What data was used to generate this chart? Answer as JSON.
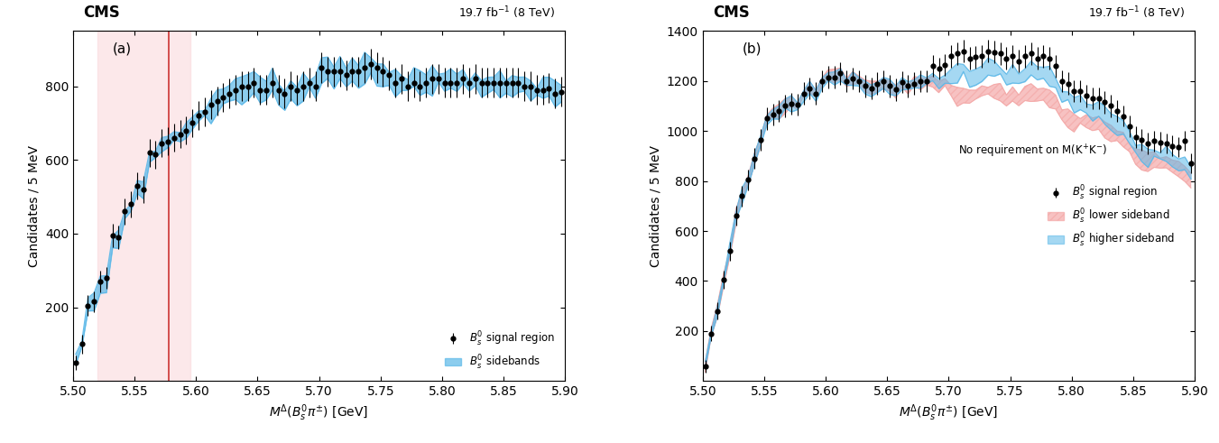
{
  "panel_a": {
    "label": "(a)",
    "xlim": [
      5.5,
      5.9
    ],
    "ylim": [
      0,
      950
    ],
    "yticks": [
      200,
      400,
      600,
      800
    ],
    "ylabel": "Candidates / 5 MeV",
    "xlabel": "$M^{\\Delta}(B^{0}_{s}\\pi^{\\pm})$ [GeV]",
    "red_line_x": 5.578,
    "pink_region": [
      5.52,
      5.595
    ],
    "signal_x": [
      5.502,
      5.507,
      5.512,
      5.517,
      5.522,
      5.527,
      5.532,
      5.537,
      5.542,
      5.547,
      5.552,
      5.557,
      5.562,
      5.567,
      5.572,
      5.577,
      5.582,
      5.587,
      5.592,
      5.597,
      5.602,
      5.607,
      5.612,
      5.617,
      5.622,
      5.627,
      5.632,
      5.637,
      5.642,
      5.647,
      5.652,
      5.657,
      5.662,
      5.667,
      5.672,
      5.677,
      5.682,
      5.687,
      5.692,
      5.697,
      5.702,
      5.707,
      5.712,
      5.717,
      5.722,
      5.727,
      5.732,
      5.737,
      5.742,
      5.747,
      5.752,
      5.757,
      5.762,
      5.767,
      5.772,
      5.777,
      5.782,
      5.787,
      5.792,
      5.797,
      5.802,
      5.807,
      5.812,
      5.817,
      5.822,
      5.827,
      5.832,
      5.837,
      5.842,
      5.847,
      5.852,
      5.857,
      5.862,
      5.867,
      5.872,
      5.877,
      5.882,
      5.887,
      5.892,
      5.897
    ],
    "signal_y": [
      50,
      100,
      205,
      215,
      270,
      280,
      395,
      390,
      460,
      480,
      530,
      520,
      620,
      615,
      645,
      650,
      660,
      670,
      680,
      700,
      720,
      730,
      750,
      760,
      770,
      780,
      790,
      800,
      800,
      810,
      790,
      790,
      810,
      790,
      780,
      800,
      790,
      800,
      810,
      800,
      850,
      840,
      840,
      840,
      830,
      840,
      840,
      850,
      860,
      850,
      840,
      830,
      810,
      820,
      800,
      810,
      800,
      810,
      820,
      820,
      810,
      810,
      810,
      820,
      810,
      820,
      810,
      810,
      810,
      810,
      810,
      810,
      810,
      800,
      800,
      790,
      790,
      795,
      780,
      785
    ],
    "signal_yerr": [
      20,
      25,
      28,
      28,
      30,
      30,
      33,
      33,
      35,
      35,
      37,
      37,
      38,
      38,
      38,
      38,
      38,
      38,
      38,
      39,
      39,
      39,
      40,
      40,
      40,
      40,
      40,
      41,
      41,
      41,
      41,
      41,
      41,
      41,
      40,
      40,
      40,
      40,
      40,
      40,
      41,
      41,
      41,
      41,
      41,
      41,
      41,
      41,
      41,
      41,
      41,
      41,
      41,
      41,
      41,
      41,
      40,
      40,
      40,
      40,
      40,
      40,
      40,
      40,
      40,
      40,
      40,
      40,
      40,
      40,
      40,
      40,
      40,
      40,
      40,
      40,
      40,
      40,
      40,
      40
    ],
    "band_x": [
      5.502,
      5.507,
      5.512,
      5.517,
      5.522,
      5.527,
      5.532,
      5.537,
      5.542,
      5.547,
      5.552,
      5.557,
      5.562,
      5.567,
      5.572,
      5.577,
      5.582,
      5.587,
      5.592,
      5.597,
      5.602,
      5.607,
      5.612,
      5.617,
      5.622,
      5.627,
      5.632,
      5.637,
      5.642,
      5.647,
      5.652,
      5.657,
      5.662,
      5.667,
      5.672,
      5.677,
      5.682,
      5.687,
      5.692,
      5.697,
      5.702,
      5.707,
      5.712,
      5.717,
      5.722,
      5.727,
      5.732,
      5.737,
      5.742,
      5.747,
      5.752,
      5.757,
      5.762,
      5.767,
      5.772,
      5.777,
      5.782,
      5.787,
      5.792,
      5.797,
      5.802,
      5.807,
      5.812,
      5.817,
      5.822,
      5.827,
      5.832,
      5.837,
      5.842,
      5.847,
      5.852,
      5.857,
      5.862,
      5.867,
      5.872,
      5.877,
      5.882,
      5.887,
      5.892,
      5.897
    ],
    "band_center": [
      55,
      105,
      205,
      215,
      265,
      275,
      385,
      385,
      455,
      475,
      525,
      515,
      618,
      610,
      640,
      648,
      658,
      665,
      678,
      698,
      718,
      728,
      745,
      755,
      768,
      778,
      788,
      798,
      798,
      808,
      788,
      788,
      808,
      788,
      778,
      798,
      788,
      798,
      808,
      798,
      848,
      838,
      838,
      838,
      828,
      838,
      838,
      848,
      858,
      848,
      838,
      828,
      808,
      818,
      798,
      808,
      798,
      808,
      818,
      818,
      808,
      808,
      808,
      818,
      808,
      818,
      808,
      808,
      808,
      808,
      808,
      808,
      808,
      798,
      798,
      788,
      788,
      793,
      778,
      783
    ],
    "band_width": [
      25,
      25,
      35,
      35,
      40,
      40,
      35,
      35,
      30,
      30,
      30,
      30,
      28,
      28,
      28,
      28,
      28,
      28,
      28,
      28,
      28,
      28,
      55,
      55,
      55,
      55,
      55,
      55,
      55,
      55,
      50,
      50,
      50,
      50,
      50,
      50,
      50,
      50,
      50,
      50,
      55,
      55,
      55,
      55,
      55,
      55,
      55,
      55,
      55,
      55,
      55,
      55,
      50,
      50,
      50,
      50,
      50,
      50,
      50,
      50,
      48,
      48,
      48,
      48,
      48,
      48,
      48,
      48,
      48,
      48,
      48,
      48,
      48,
      45,
      45,
      45,
      45,
      45,
      45,
      45
    ]
  },
  "panel_b": {
    "label": "(b)",
    "xlim": [
      5.5,
      5.9
    ],
    "ylim": [
      0,
      1400
    ],
    "yticks": [
      200,
      400,
      600,
      800,
      1000,
      1200,
      1400
    ],
    "ylabel": "Candidates / 5 MeV",
    "xlabel": "$M^{\\Delta}(B^{0}_{s}\\pi^{\\pm})$ [GeV]",
    "annotation": "No requirement on M(K$^{+}$K$^{-}$)",
    "signal_x": [
      5.502,
      5.507,
      5.512,
      5.517,
      5.522,
      5.527,
      5.532,
      5.537,
      5.542,
      5.547,
      5.552,
      5.557,
      5.562,
      5.567,
      5.572,
      5.577,
      5.582,
      5.587,
      5.592,
      5.597,
      5.602,
      5.607,
      5.612,
      5.617,
      5.622,
      5.627,
      5.632,
      5.637,
      5.642,
      5.647,
      5.652,
      5.657,
      5.662,
      5.667,
      5.672,
      5.677,
      5.682,
      5.687,
      5.692,
      5.697,
      5.702,
      5.707,
      5.712,
      5.717,
      5.722,
      5.727,
      5.732,
      5.737,
      5.742,
      5.747,
      5.752,
      5.757,
      5.762,
      5.767,
      5.772,
      5.777,
      5.782,
      5.787,
      5.792,
      5.797,
      5.802,
      5.807,
      5.812,
      5.817,
      5.822,
      5.827,
      5.832,
      5.837,
      5.842,
      5.847,
      5.852,
      5.857,
      5.862,
      5.867,
      5.872,
      5.877,
      5.882,
      5.887,
      5.892,
      5.897
    ],
    "signal_y": [
      60,
      190,
      280,
      405,
      520,
      660,
      740,
      805,
      890,
      965,
      1050,
      1065,
      1080,
      1100,
      1110,
      1105,
      1150,
      1170,
      1150,
      1200,
      1215,
      1215,
      1230,
      1200,
      1210,
      1200,
      1180,
      1170,
      1190,
      1200,
      1180,
      1165,
      1195,
      1180,
      1190,
      1200,
      1200,
      1260,
      1250,
      1265,
      1300,
      1310,
      1320,
      1290,
      1295,
      1300,
      1320,
      1315,
      1310,
      1290,
      1300,
      1280,
      1300,
      1310,
      1290,
      1300,
      1290,
      1260,
      1200,
      1190,
      1160,
      1160,
      1140,
      1130,
      1130,
      1115,
      1100,
      1080,
      1060,
      1020,
      975,
      965,
      950,
      960,
      955,
      950,
      940,
      935,
      960,
      870
    ],
    "signal_yerr": [
      25,
      30,
      35,
      37,
      38,
      40,
      41,
      41,
      42,
      43,
      44,
      44,
      44,
      44,
      44,
      44,
      44,
      44,
      44,
      44,
      44,
      44,
      44,
      44,
      44,
      44,
      44,
      44,
      44,
      44,
      44,
      44,
      44,
      44,
      44,
      44,
      44,
      44,
      44,
      44,
      45,
      45,
      45,
      45,
      45,
      45,
      45,
      45,
      45,
      45,
      45,
      45,
      45,
      45,
      45,
      45,
      45,
      45,
      44,
      44,
      44,
      44,
      44,
      44,
      44,
      44,
      44,
      43,
      43,
      43,
      42,
      42,
      42,
      41,
      41,
      41,
      41,
      40,
      40,
      40
    ],
    "lower_band_x": [
      5.502,
      5.507,
      5.512,
      5.517,
      5.522,
      5.527,
      5.532,
      5.537,
      5.542,
      5.547,
      5.552,
      5.557,
      5.562,
      5.567,
      5.572,
      5.577,
      5.582,
      5.587,
      5.592,
      5.597,
      5.602,
      5.607,
      5.612,
      5.617,
      5.622,
      5.627,
      5.632,
      5.637,
      5.642,
      5.647,
      5.652,
      5.657,
      5.662,
      5.667,
      5.672,
      5.677,
      5.682,
      5.687,
      5.692,
      5.697,
      5.702,
      5.707,
      5.712,
      5.717,
      5.722,
      5.727,
      5.732,
      5.737,
      5.742,
      5.747,
      5.752,
      5.757,
      5.762,
      5.767,
      5.772,
      5.777,
      5.782,
      5.787,
      5.792,
      5.797,
      5.802,
      5.807,
      5.812,
      5.817,
      5.822,
      5.827,
      5.832,
      5.837,
      5.842,
      5.847,
      5.852,
      5.857,
      5.862,
      5.867,
      5.872,
      5.877,
      5.882,
      5.887,
      5.892,
      5.897
    ],
    "lower_band_center": [
      60,
      190,
      280,
      405,
      520,
      660,
      740,
      805,
      890,
      965,
      1050,
      1065,
      1080,
      1100,
      1110,
      1105,
      1150,
      1170,
      1150,
      1200,
      1215,
      1215,
      1230,
      1200,
      1210,
      1200,
      1180,
      1170,
      1180,
      1190,
      1175,
      1160,
      1190,
      1175,
      1190,
      1195,
      1195,
      1200,
      1185,
      1195,
      1150,
      1145,
      1150,
      1140,
      1145,
      1150,
      1160,
      1155,
      1150,
      1130,
      1140,
      1120,
      1140,
      1150,
      1130,
      1140,
      1130,
      1110,
      1060,
      1060,
      1040,
      1040,
      1030,
      1020,
      1020,
      1010,
      1000,
      980,
      965,
      935,
      895,
      880,
      870,
      875,
      870,
      862,
      855,
      845,
      840,
      800
    ],
    "lower_band_width": [
      30,
      30,
      35,
      35,
      40,
      45,
      40,
      35,
      35,
      35,
      40,
      40,
      40,
      40,
      40,
      40,
      40,
      40,
      40,
      40,
      40,
      40,
      40,
      40,
      40,
      40,
      40,
      40,
      40,
      40,
      40,
      40,
      40,
      40,
      40,
      40,
      40,
      40,
      40,
      40,
      55,
      55,
      55,
      55,
      55,
      55,
      55,
      55,
      55,
      55,
      55,
      55,
      55,
      55,
      55,
      55,
      55,
      55,
      55,
      55,
      55,
      55,
      55,
      55,
      55,
      55,
      55,
      55,
      55,
      55,
      55,
      55,
      55,
      55,
      55,
      55,
      55,
      55,
      55,
      55
    ],
    "higher_band_center": [
      60,
      190,
      280,
      405,
      520,
      660,
      740,
      805,
      890,
      965,
      1050,
      1065,
      1080,
      1100,
      1110,
      1105,
      1150,
      1165,
      1150,
      1200,
      1210,
      1210,
      1225,
      1195,
      1205,
      1200,
      1178,
      1168,
      1188,
      1195,
      1178,
      1163,
      1193,
      1178,
      1188,
      1198,
      1198,
      1208,
      1195,
      1208,
      1230,
      1235,
      1250,
      1220,
      1225,
      1230,
      1248,
      1240,
      1238,
      1218,
      1228,
      1210,
      1228,
      1240,
      1218,
      1228,
      1218,
      1188,
      1148,
      1138,
      1108,
      1108,
      1088,
      1078,
      1078,
      1063,
      1048,
      1028,
      1008,
      968,
      928,
      915,
      900,
      910,
      903,
      895,
      888,
      878,
      873,
      833
    ],
    "higher_band_width": [
      30,
      30,
      35,
      35,
      40,
      45,
      40,
      35,
      35,
      35,
      40,
      40,
      40,
      40,
      40,
      40,
      40,
      40,
      40,
      40,
      40,
      40,
      40,
      40,
      40,
      40,
      40,
      40,
      40,
      40,
      40,
      40,
      40,
      40,
      40,
      40,
      40,
      40,
      40,
      40,
      55,
      55,
      55,
      55,
      55,
      55,
      55,
      55,
      55,
      55,
      55,
      55,
      55,
      55,
      55,
      55,
      55,
      55,
      55,
      55,
      55,
      55,
      55,
      55,
      55,
      55,
      55,
      55,
      55,
      55,
      55,
      55,
      55,
      55,
      55,
      55,
      55,
      55,
      55,
      55
    ]
  },
  "cms_label": "CMS",
  "lumi_label": "19.7 fb$^{-1}$ (8 TeV)",
  "blue_color": "#5BB8E8",
  "pink_color": "#F4A9A8",
  "red_line_color": "#CC3333",
  "pink_bg_color": "#FADADD"
}
